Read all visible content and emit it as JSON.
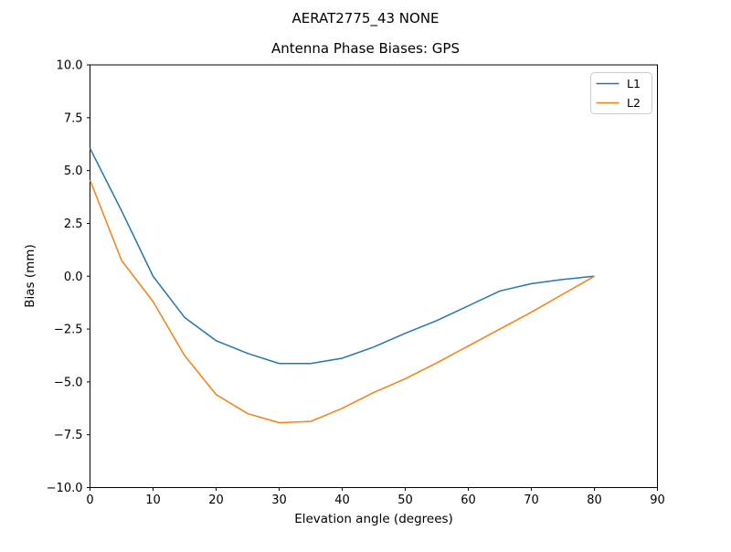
{
  "chart_data": {
    "type": "line",
    "title": "AERAT2775_43    NONE",
    "subtitle": "Antenna Phase Biases: GPS",
    "xlabel": "Elevation angle (degrees)",
    "ylabel": "Bias (mm)",
    "xlim": [
      0,
      90
    ],
    "ylim": [
      -10,
      10
    ],
    "grid": false,
    "legend_position": "upper right",
    "xticks": [
      0,
      10,
      20,
      30,
      40,
      50,
      60,
      70,
      80,
      90
    ],
    "xticklabels": [
      "0",
      "10",
      "20",
      "30",
      "40",
      "50",
      "60",
      "70",
      "80",
      "90"
    ],
    "yticks": [
      10,
      7.5,
      5,
      2.5,
      0,
      -2.5,
      -5,
      -7.5,
      -10
    ],
    "yticklabels": [
      "10.0",
      "7.5",
      "5.0",
      "2.5",
      "0.0",
      "−2.5",
      "−5.0",
      "−7.5",
      "−10.0"
    ],
    "x": [
      0,
      5,
      10,
      15,
      20,
      25,
      30,
      35,
      40,
      45,
      50,
      55,
      60,
      65,
      70,
      75,
      80
    ],
    "series": [
      {
        "name": "L1",
        "color": "#1f77b4",
        "values": [
          6.05,
          3.1,
          0.0,
          -1.95,
          -3.05,
          -3.65,
          -4.13,
          -4.13,
          -3.88,
          -3.35,
          -2.7,
          -2.1,
          -1.4,
          -0.7,
          -0.35,
          -0.15,
          0.0
        ]
      },
      {
        "name": "L2",
        "color": "#ff7f0e",
        "values": [
          4.55,
          0.75,
          -1.2,
          -3.75,
          -5.6,
          -6.5,
          -6.93,
          -6.87,
          -6.25,
          -5.5,
          -4.85,
          -4.1,
          -3.3,
          -2.5,
          -1.7,
          -0.85,
          0.0
        ]
      }
    ]
  }
}
